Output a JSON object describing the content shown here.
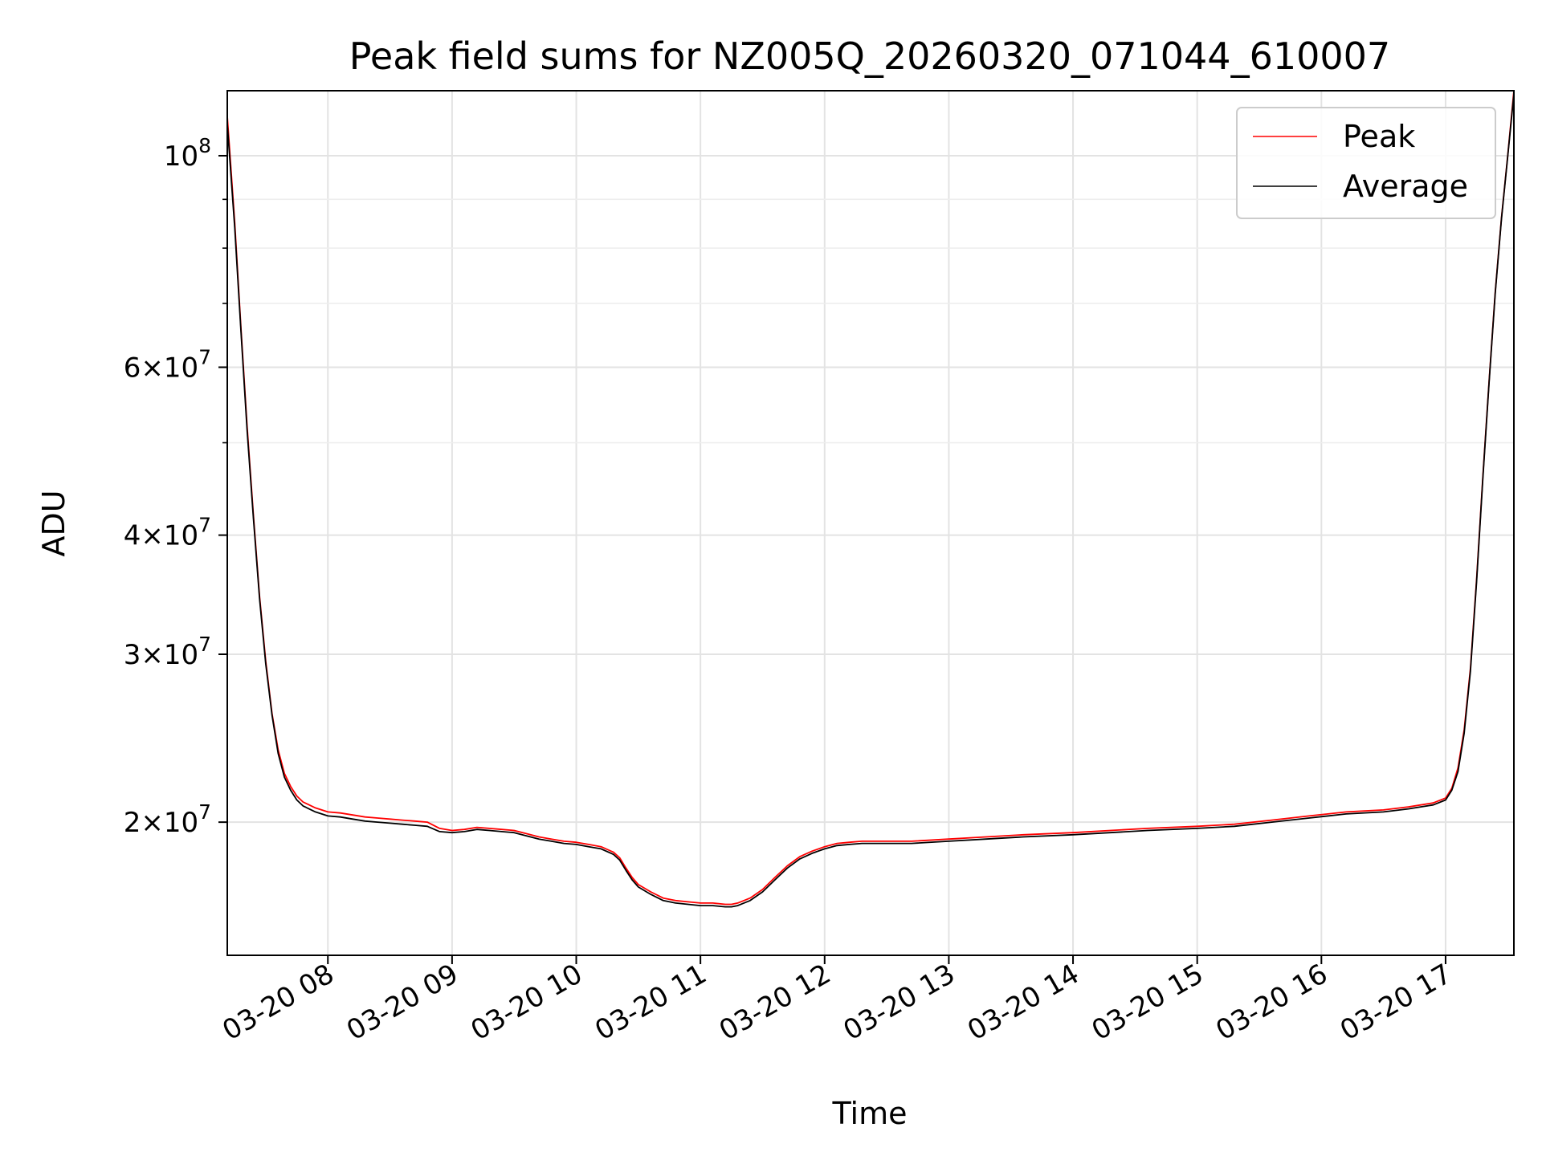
{
  "chart_data": {
    "type": "line",
    "title": "Peak field sums for NZ005Q_20260320_071044_610007",
    "xlabel": "Time",
    "ylabel": "ADU",
    "yscale": "log",
    "x_unit": "hour of 2026-03-20",
    "xlim": [
      7.19,
      17.55
    ],
    "ylim": [
      14500000,
      117000000
    ],
    "x_ticks": [
      {
        "value": 8,
        "label": "03-20 08"
      },
      {
        "value": 9,
        "label": "03-20 09"
      },
      {
        "value": 10,
        "label": "03-20 10"
      },
      {
        "value": 11,
        "label": "03-20 11"
      },
      {
        "value": 12,
        "label": "03-20 12"
      },
      {
        "value": 13,
        "label": "03-20 13"
      },
      {
        "value": 14,
        "label": "03-20 14"
      },
      {
        "value": 15,
        "label": "03-20 15"
      },
      {
        "value": 16,
        "label": "03-20 16"
      },
      {
        "value": 17,
        "label": "03-20 17"
      }
    ],
    "y_ticks": [
      {
        "value": 20000000,
        "mant": "2",
        "exp": "7"
      },
      {
        "value": 30000000,
        "mant": "3",
        "exp": "7"
      },
      {
        "value": 40000000,
        "mant": "4",
        "exp": "7"
      },
      {
        "value": 60000000,
        "mant": "6",
        "exp": "7"
      },
      {
        "value": 100000000,
        "mant": "",
        "exp": "8"
      }
    ],
    "y_minor": [
      50000000,
      70000000,
      80000000,
      90000000
    ],
    "grid": true,
    "legend_position": "top-right",
    "series": [
      {
        "name": "Peak",
        "color": "#ff0000",
        "x": [
          7.19,
          7.25,
          7.3,
          7.35,
          7.4,
          7.45,
          7.5,
          7.55,
          7.6,
          7.65,
          7.7,
          7.75,
          7.8,
          7.9,
          8.0,
          8.1,
          8.2,
          8.3,
          8.4,
          8.5,
          8.6,
          8.7,
          8.8,
          8.9,
          9.0,
          9.1,
          9.2,
          9.3,
          9.4,
          9.5,
          9.6,
          9.7,
          9.8,
          9.9,
          10.0,
          10.1,
          10.2,
          10.3,
          10.35,
          10.4,
          10.45,
          10.5,
          10.6,
          10.7,
          10.8,
          10.9,
          11.0,
          11.1,
          11.2,
          11.25,
          11.3,
          11.4,
          11.5,
          11.6,
          11.7,
          11.8,
          11.9,
          12.0,
          12.1,
          12.2,
          12.3,
          12.5,
          12.7,
          13.0,
          13.3,
          13.6,
          14.0,
          14.3,
          14.6,
          15.0,
          15.3,
          15.6,
          15.9,
          16.2,
          16.5,
          16.7,
          16.8,
          16.9,
          17.0,
          17.05,
          17.1,
          17.15,
          17.2,
          17.25,
          17.3,
          17.35,
          17.4,
          17.45,
          17.5,
          17.55
        ],
        "values": [
          110000000,
          85000000,
          66000000,
          52000000,
          42000000,
          34500000,
          29500000,
          26000000,
          23800000,
          22500000,
          21800000,
          21300000,
          21000000,
          20700000,
          20500000,
          20450000,
          20350000,
          20250000,
          20200000,
          20150000,
          20100000,
          20050000,
          20000000,
          19700000,
          19600000,
          19650000,
          19750000,
          19700000,
          19650000,
          19600000,
          19450000,
          19300000,
          19200000,
          19100000,
          19050000,
          18950000,
          18850000,
          18600000,
          18350000,
          17900000,
          17500000,
          17200000,
          16900000,
          16650000,
          16550000,
          16500000,
          16450000,
          16450000,
          16400000,
          16400000,
          16450000,
          16650000,
          17000000,
          17500000,
          18000000,
          18400000,
          18650000,
          18850000,
          19000000,
          19050000,
          19100000,
          19100000,
          19100000,
          19200000,
          19300000,
          19400000,
          19500000,
          19600000,
          19700000,
          19800000,
          19900000,
          20100000,
          20300000,
          20500000,
          20600000,
          20750000,
          20850000,
          20950000,
          21200000,
          21700000,
          22800000,
          25000000,
          29000000,
          36000000,
          46000000,
          58000000,
          72000000,
          86000000,
          100000000,
          117000000
        ]
      },
      {
        "name": "Average",
        "color": "#000000",
        "x": [
          7.19,
          7.25,
          7.3,
          7.35,
          7.4,
          7.45,
          7.5,
          7.55,
          7.6,
          7.65,
          7.7,
          7.75,
          7.8,
          7.9,
          8.0,
          8.1,
          8.2,
          8.3,
          8.4,
          8.5,
          8.6,
          8.7,
          8.8,
          8.9,
          9.0,
          9.1,
          9.2,
          9.3,
          9.4,
          9.5,
          9.6,
          9.7,
          9.8,
          9.9,
          10.0,
          10.1,
          10.2,
          10.3,
          10.35,
          10.4,
          10.45,
          10.5,
          10.6,
          10.7,
          10.8,
          10.9,
          11.0,
          11.1,
          11.2,
          11.25,
          11.3,
          11.4,
          11.5,
          11.6,
          11.7,
          11.8,
          11.9,
          12.0,
          12.1,
          12.2,
          12.3,
          12.5,
          12.7,
          13.0,
          13.3,
          13.6,
          14.0,
          14.3,
          14.6,
          15.0,
          15.3,
          15.6,
          15.9,
          16.2,
          16.5,
          16.7,
          16.8,
          16.9,
          17.0,
          17.05,
          17.1,
          17.15,
          17.2,
          17.25,
          17.3,
          17.35,
          17.4,
          17.45,
          17.5,
          17.55
        ],
        "values": [
          108000000,
          84000000,
          65500000,
          51500000,
          41700000,
          34300000,
          29300000,
          25900000,
          23600000,
          22300000,
          21600000,
          21100000,
          20800000,
          20500000,
          20300000,
          20250000,
          20150000,
          20050000,
          20000000,
          19950000,
          19900000,
          19850000,
          19800000,
          19550000,
          19500000,
          19550000,
          19650000,
          19600000,
          19550000,
          19500000,
          19350000,
          19200000,
          19100000,
          19000000,
          18950000,
          18850000,
          18750000,
          18500000,
          18250000,
          17800000,
          17400000,
          17100000,
          16800000,
          16550000,
          16450000,
          16400000,
          16350000,
          16350000,
          16300000,
          16300000,
          16350000,
          16550000,
          16900000,
          17400000,
          17900000,
          18300000,
          18550000,
          18750000,
          18900000,
          18950000,
          19000000,
          19000000,
          19000000,
          19100000,
          19200000,
          19300000,
          19400000,
          19500000,
          19600000,
          19700000,
          19800000,
          20000000,
          20200000,
          20400000,
          20500000,
          20650000,
          20750000,
          20850000,
          21100000,
          21600000,
          22600000,
          24800000,
          28800000,
          35800000,
          45800000,
          57800000,
          71800000,
          85800000,
          99800000,
          116000000
        ]
      }
    ]
  }
}
